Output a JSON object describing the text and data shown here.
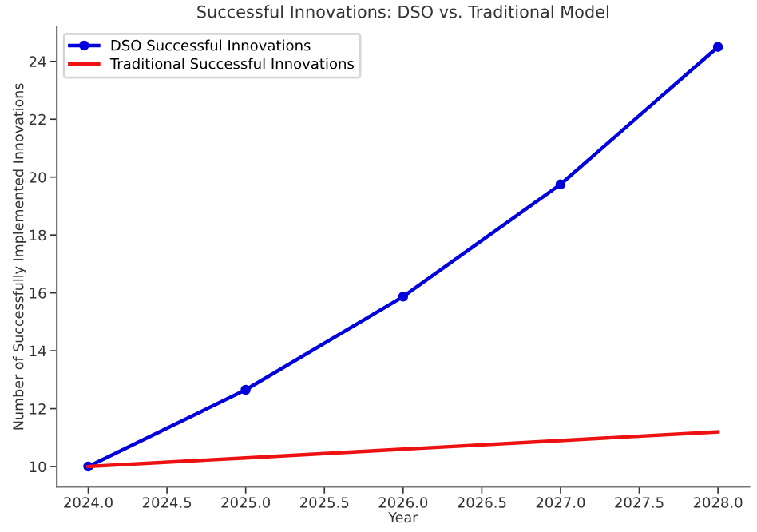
{
  "chart_data": {
    "type": "line",
    "title": "Successful Innovations: DSO vs. Traditional Model",
    "xlabel": "Year",
    "ylabel": "Number of Successfully Implemented Innovations",
    "x": [
      2024,
      2025,
      2026,
      2027,
      2028
    ],
    "series": [
      {
        "name": "DSO Successful Innovations",
        "color": "#0000dd",
        "marker": "circle",
        "values": [
          10,
          12.65,
          15.87,
          19.75,
          24.5
        ]
      },
      {
        "name": "Traditional Successful Innovations",
        "color": "#ee1111",
        "marker": "none",
        "values": [
          10,
          10.3,
          10.6,
          10.9,
          11.2
        ]
      }
    ],
    "xlim": [
      2023.8,
      2028.2
    ],
    "xticks": [
      {
        "value": 2024,
        "label": "2024.0"
      },
      {
        "value": 2024.5,
        "label": "2024.5"
      },
      {
        "value": 2025,
        "label": "2025.0"
      },
      {
        "value": 2025.5,
        "label": "2025.5"
      },
      {
        "value": 2026,
        "label": "2026.0"
      },
      {
        "value": 2026.5,
        "label": "2026.5"
      },
      {
        "value": 2027,
        "label": "2027.0"
      },
      {
        "value": 2027.5,
        "label": "2027.5"
      },
      {
        "value": 2028,
        "label": "2028.0"
      }
    ],
    "ylim": [
      9.3,
      25.2
    ],
    "yticks": [
      10,
      12,
      14,
      16,
      18,
      20,
      22,
      24
    ],
    "grid": false,
    "legend": "top left",
    "line_style": "solid"
  }
}
